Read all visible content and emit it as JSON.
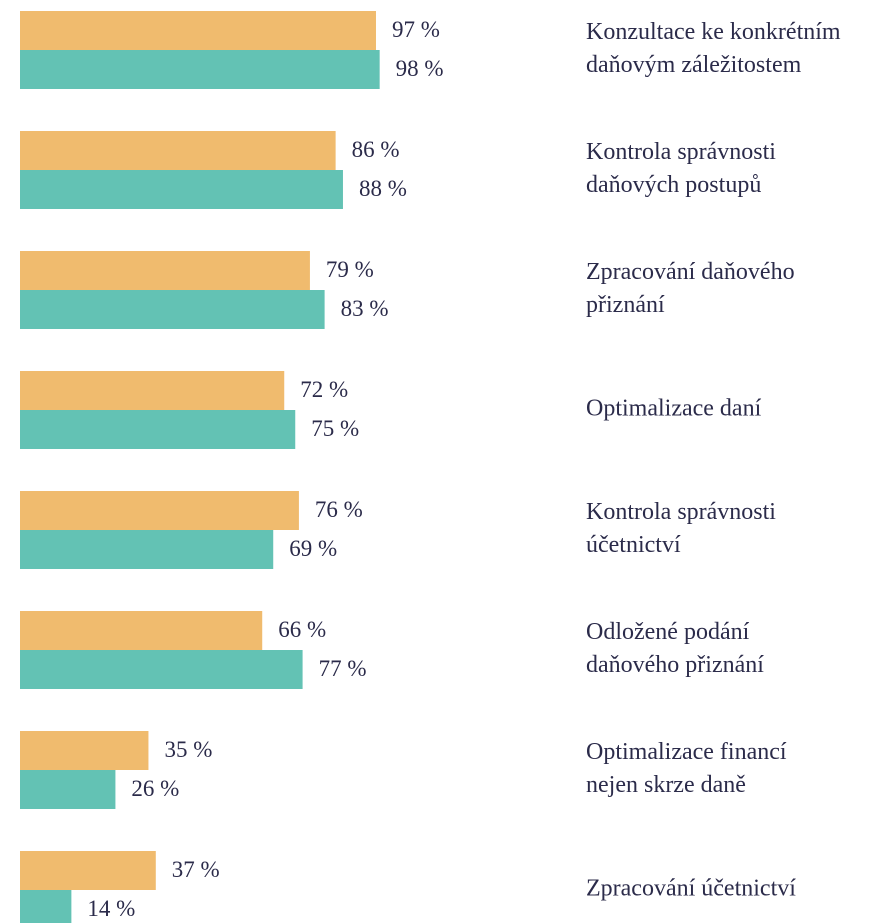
{
  "chart_data": {
    "type": "bar",
    "orientation": "horizontal",
    "categories": [
      [
        "Konzultace ke konkrétním",
        "daňovým záležitostem"
      ],
      [
        "Kontrola správnosti",
        "daňových postupů"
      ],
      [
        "Zpracování daňového",
        "přiznání"
      ],
      [
        "Optimalizace daní"
      ],
      [
        "Kontrola správnosti",
        "účetnictví"
      ],
      [
        "Odložené podání",
        "daňového přiznání"
      ],
      [
        "Optimalizace financí",
        "nejen skrze daně"
      ],
      [
        "Zpracování účetnictví"
      ]
    ],
    "series": [
      {
        "color": "#f0bb6e",
        "values": [
          97,
          86,
          79,
          72,
          76,
          66,
          35,
          37
        ],
        "value_labels": [
          "97 %",
          "86 %",
          "79 %",
          "72 %",
          "76 %",
          "66 %",
          "35 %",
          "37 %"
        ]
      },
      {
        "color": "#63c2b4",
        "values": [
          98,
          88,
          83,
          75,
          69,
          77,
          26,
          14
        ],
        "value_labels": [
          "98 %",
          "88 %",
          "83 %",
          "75 %",
          "69 %",
          "77 %",
          "26 %",
          "14 %"
        ]
      }
    ],
    "xlim": [
      0,
      100
    ],
    "grid": false
  }
}
